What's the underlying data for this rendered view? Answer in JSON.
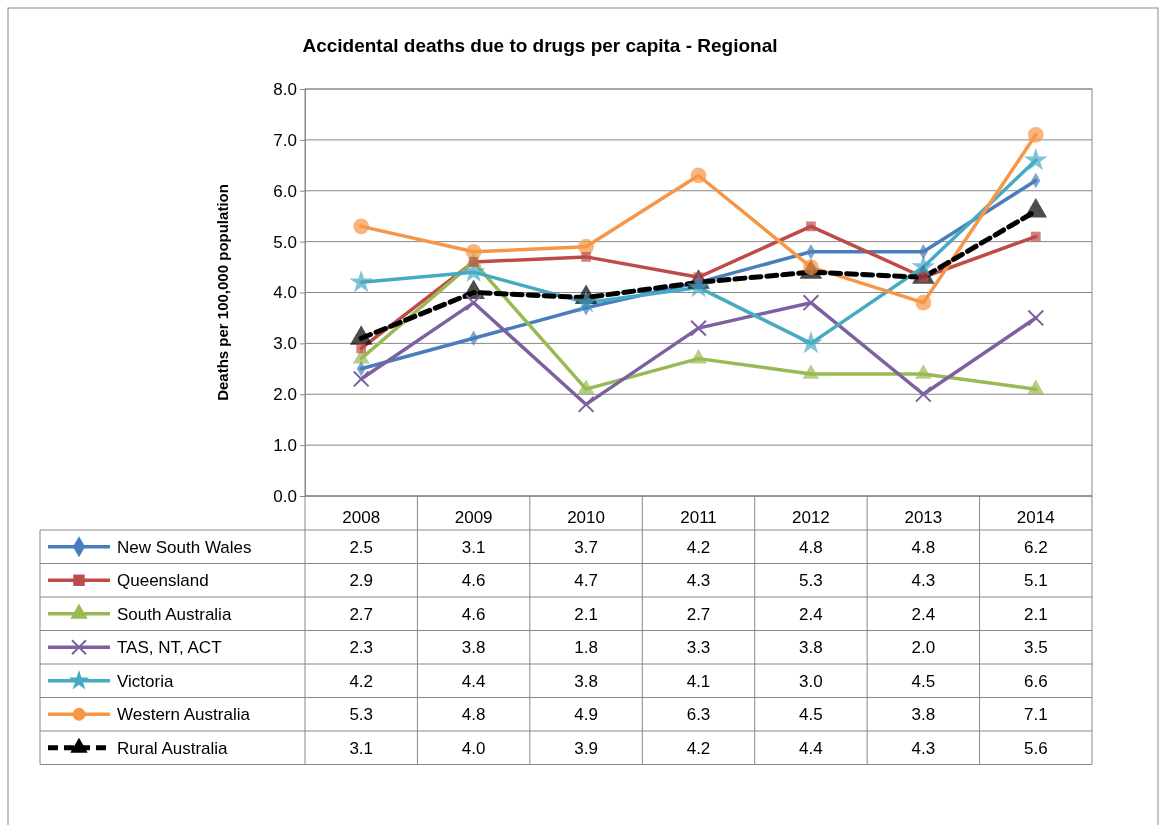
{
  "chart_data": {
    "type": "line",
    "title": "Accidental deaths due to drugs per capita - Regional",
    "ylabel": "Deaths per 100,000 population",
    "categories": [
      "2008",
      "2009",
      "2010",
      "2011",
      "2012",
      "2013",
      "2014"
    ],
    "series": [
      {
        "name": "New South Wales",
        "color": "#4a7ebb",
        "marker": "diamond",
        "line_style": "solid",
        "values": [
          2.5,
          3.1,
          3.7,
          4.2,
          4.8,
          4.8,
          6.2
        ],
        "value_labels": [
          "2.5",
          "3.1",
          "3.7",
          "4.2",
          "4.8",
          "4.8",
          "6.2"
        ]
      },
      {
        "name": "Queensland",
        "color": "#be4b48",
        "marker": "square",
        "line_style": "solid",
        "values": [
          2.9,
          4.6,
          4.7,
          4.3,
          5.3,
          4.3,
          5.1
        ],
        "value_labels": [
          "2.9",
          "4.6",
          "4.7",
          "4.3",
          "5.3",
          "4.3",
          "5.1"
        ]
      },
      {
        "name": "South Australia",
        "color": "#98b954",
        "marker": "triangle",
        "line_style": "solid",
        "values": [
          2.7,
          4.6,
          2.1,
          2.7,
          2.4,
          2.4,
          2.1
        ],
        "value_labels": [
          "2.7",
          "4.6",
          "2.1",
          "2.7",
          "2.4",
          "2.4",
          "2.1"
        ]
      },
      {
        "name": "TAS, NT, ACT",
        "color": "#7d60a0",
        "marker": "cross",
        "line_style": "solid",
        "values": [
          2.3,
          3.8,
          1.8,
          3.3,
          3.8,
          2.0,
          3.5
        ],
        "value_labels": [
          "2.3",
          "3.8",
          "1.8",
          "3.3",
          "3.8",
          "2.0",
          "3.5"
        ]
      },
      {
        "name": "Victoria",
        "color": "#46aac5",
        "marker": "star",
        "line_style": "solid",
        "values": [
          4.2,
          4.4,
          3.8,
          4.1,
          3.0,
          4.5,
          6.6
        ],
        "value_labels": [
          "4.2",
          "4.4",
          "3.8",
          "4.1",
          "3.0",
          "4.5",
          "6.6"
        ]
      },
      {
        "name": "Western Australia",
        "color": "#f79646",
        "marker": "circle",
        "line_style": "solid",
        "values": [
          5.3,
          4.8,
          4.9,
          6.3,
          4.5,
          3.8,
          7.1
        ],
        "value_labels": [
          "5.3",
          "4.8",
          "4.9",
          "6.3",
          "4.5",
          "3.8",
          "7.1"
        ]
      },
      {
        "name": "Rural Australia",
        "color": "#000000",
        "marker": "triangle",
        "line_style": "dashed",
        "values": [
          3.1,
          4.0,
          3.9,
          4.2,
          4.4,
          4.3,
          5.6
        ],
        "value_labels": [
          "3.1",
          "4.0",
          "3.9",
          "4.2",
          "4.4",
          "4.3",
          "5.6"
        ]
      }
    ],
    "ylim": [
      0,
      8
    ],
    "yticks": [
      {
        "value": 0,
        "label": "0.0"
      },
      {
        "value": 1,
        "label": "1.0"
      },
      {
        "value": 2,
        "label": "2.0"
      },
      {
        "value": 3,
        "label": "3.0"
      },
      {
        "value": 4,
        "label": "4.0"
      },
      {
        "value": 5,
        "label": "5.0"
      },
      {
        "value": 6,
        "label": "6.0"
      },
      {
        "value": 7,
        "label": "7.0"
      },
      {
        "value": 8,
        "label": "8.0"
      }
    ],
    "grid": "y",
    "legend": "bottom"
  }
}
